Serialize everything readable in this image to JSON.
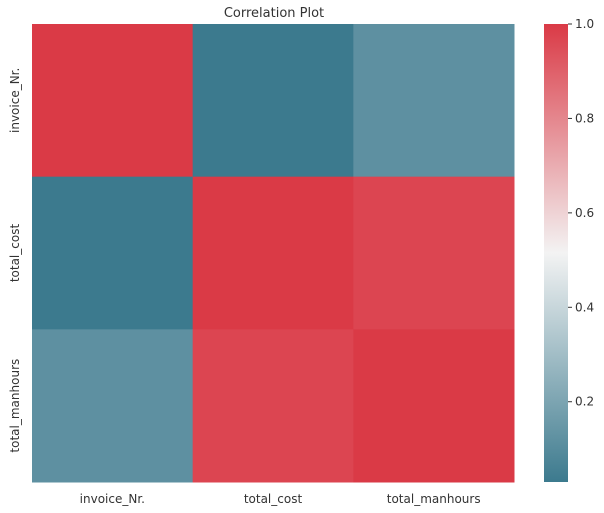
{
  "chart_data": {
    "type": "heatmap",
    "title": "Correlation Plot",
    "x_categories": [
      "invoice_Nr.",
      "total_cost",
      "total_manhours"
    ],
    "y_categories": [
      "invoice_Nr.",
      "total_cost",
      "total_manhours"
    ],
    "values": [
      [
        1.0,
        0.03,
        0.12
      ],
      [
        0.03,
        1.0,
        0.97
      ],
      [
        0.12,
        0.97,
        1.0
      ]
    ],
    "colorbar": {
      "range": [
        0.03,
        1.0
      ],
      "ticks": [
        "0.2",
        "0.4",
        "0.6",
        "0.8",
        "1.0"
      ],
      "tick_values": [
        0.2,
        0.4,
        0.6,
        0.8,
        1.0
      ]
    },
    "colormap": {
      "low": "#3c7a8e",
      "mid": "#f3f3f3",
      "high": "#da3a46"
    },
    "grid": false
  }
}
